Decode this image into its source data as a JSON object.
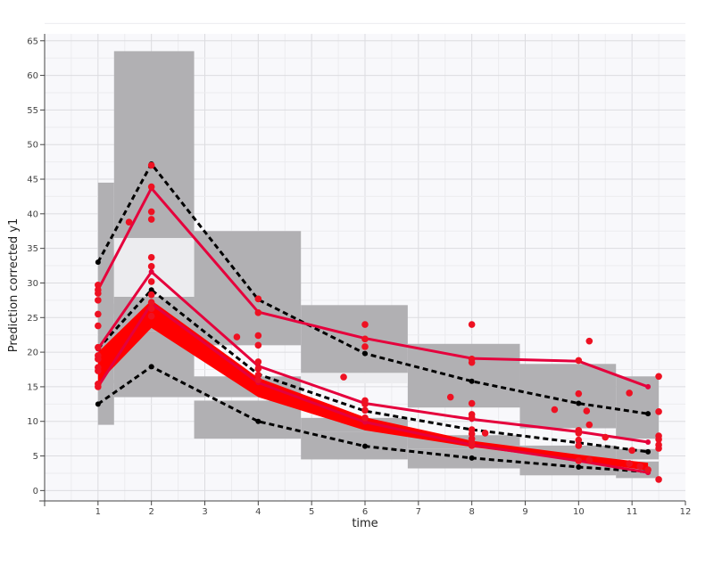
{
  "chart_data": {
    "type": "scatter",
    "xlabel": "time",
    "ylabel": "Prediction corrected y1",
    "xlim": [
      0,
      12
    ],
    "ylim": [
      -1.5,
      66
    ],
    "xticks": [
      1,
      2,
      3,
      4,
      5,
      6,
      7,
      8,
      9,
      10,
      11,
      12
    ],
    "yticks": [
      0,
      5,
      10,
      15,
      20,
      25,
      30,
      35,
      40,
      45,
      50,
      55,
      60,
      65
    ],
    "grid": true,
    "legend": "none",
    "colors": {
      "plot_background": "#f8f8fb",
      "outer_band": "#b1b0b3",
      "median_band": "#ff0000",
      "inner_gap": "#ececef",
      "observed": "#e5003c",
      "simulated": "#000000",
      "points": "#ee1122"
    },
    "bins": [
      {
        "x0": 1.0,
        "x1": 1.3,
        "ylow": [
          9.5,
          16.0,
          25.5
        ],
        "yhigh": [
          16.0,
          25.5,
          44.5
        ],
        "median": [
          15.5,
          27.0
        ]
      },
      {
        "x0": 1.3,
        "x1": 2.8,
        "ylow": [
          13.5,
          23.5,
          36.5
        ],
        "yhigh": [
          23.0,
          28.0,
          63.5
        ],
        "median": [
          23.0,
          28.0
        ]
      },
      {
        "x0": 2.8,
        "x1": 4.8,
        "ylow": [
          7.5,
          13.0,
          21.0
        ],
        "yhigh": [
          13.0,
          21.0,
          37.5
        ],
        "median": [
          13.5,
          16.5
        ]
      },
      {
        "x0": 4.8,
        "x1": 6.8,
        "ylow": [
          4.5,
          8.5,
          17.0
        ],
        "yhigh": [
          8.5,
          15.5,
          26.8
        ],
        "median": [
          8.5,
          10.5
        ]
      },
      {
        "x0": 6.8,
        "x1": 8.9,
        "ylow": [
          3.2,
          6.5,
          12.0
        ],
        "yhigh": [
          6.0,
          12.0,
          21.2
        ],
        "median": [
          6.0,
          8.0
        ]
      },
      {
        "x0": 8.9,
        "x1": 10.7,
        "ylow": [
          2.2,
          4.5,
          9.0
        ],
        "yhigh": [
          4.8,
          9.5,
          18.3
        ],
        "median": [
          4.5,
          6.5
        ]
      },
      {
        "x0": 10.7,
        "x1": 11.5,
        "ylow": [
          1.8,
          4.0,
          7.5
        ],
        "yhigh": [
          4.2,
          8.0,
          16.5
        ],
        "median": [
          4.5,
          6.0
        ]
      }
    ],
    "median_band": {
      "x": [
        1.0,
        2.0,
        4.0,
        6.0,
        8.0,
        10.0,
        11.3
      ],
      "low": [
        15.5,
        23.5,
        13.5,
        8.7,
        6.3,
        4.3,
        2.9
      ],
      "high": [
        20.0,
        27.5,
        16.3,
        10.6,
        7.2,
        5.2,
        4.0
      ]
    },
    "series": [
      {
        "role": "observed-p95",
        "x": [
          1.0,
          2.0,
          4.0,
          6.0,
          8.0,
          10.0,
          11.3
        ],
        "values": [
          29.0,
          43.7,
          25.8,
          22.0,
          19.1,
          18.7,
          15.0
        ]
      },
      {
        "role": "observed-p50",
        "x": [
          1.0,
          2.0,
          4.0,
          6.0,
          8.0,
          10.0,
          11.3
        ],
        "values": [
          20.5,
          31.6,
          18.0,
          12.6,
          10.3,
          8.5,
          7.0
        ]
      },
      {
        "role": "observed-p5",
        "x": [
          1.0,
          2.0,
          4.0,
          6.0,
          8.0,
          10.0,
          11.3
        ],
        "values": [
          15.0,
          27.0,
          15.6,
          9.9,
          6.6,
          4.3,
          2.6
        ]
      },
      {
        "role": "simulated-p95",
        "x": [
          1.0,
          2.0,
          4.0,
          6.0,
          8.0,
          10.0,
          11.3
        ],
        "values": [
          33.0,
          47.2,
          27.6,
          19.8,
          15.8,
          12.6,
          11.1
        ]
      },
      {
        "role": "simulated-p50",
        "x": [
          1.0,
          2.0,
          4.0,
          6.0,
          8.0,
          10.0,
          11.3
        ],
        "values": [
          20.5,
          29.0,
          16.8,
          11.5,
          8.8,
          6.9,
          5.6
        ]
      },
      {
        "role": "simulated-p5",
        "x": [
          1.0,
          2.0,
          4.0,
          6.0,
          8.0,
          10.0,
          11.3
        ],
        "values": [
          12.5,
          17.9,
          10.0,
          6.4,
          4.7,
          3.4,
          2.7
        ]
      }
    ],
    "points": [
      {
        "x": 1,
        "y": 29.7
      },
      {
        "x": 1,
        "y": 29.0
      },
      {
        "x": 1,
        "y": 28.5
      },
      {
        "x": 1,
        "y": 27.5
      },
      {
        "x": 1,
        "y": 25.5
      },
      {
        "x": 1,
        "y": 23.8
      },
      {
        "x": 1,
        "y": 20.7
      },
      {
        "x": 1,
        "y": 19.5
      },
      {
        "x": 1,
        "y": 19.0
      },
      {
        "x": 1,
        "y": 17.8
      },
      {
        "x": 1,
        "y": 17.3
      },
      {
        "x": 1,
        "y": 15.4
      },
      {
        "x": 1,
        "y": 15.0
      },
      {
        "x": 1.58,
        "y": 38.8
      },
      {
        "x": 2,
        "y": 47.0
      },
      {
        "x": 2,
        "y": 43.9
      },
      {
        "x": 2,
        "y": 40.3
      },
      {
        "x": 2,
        "y": 39.2
      },
      {
        "x": 2,
        "y": 33.7
      },
      {
        "x": 2,
        "y": 32.4
      },
      {
        "x": 2,
        "y": 30.2
      },
      {
        "x": 2,
        "y": 28.3
      },
      {
        "x": 2,
        "y": 27.2
      },
      {
        "x": 2,
        "y": 26.3
      },
      {
        "x": 2,
        "y": 25.2
      },
      {
        "x": 3.6,
        "y": 22.2
      },
      {
        "x": 4,
        "y": 27.7
      },
      {
        "x": 4,
        "y": 25.7
      },
      {
        "x": 4,
        "y": 22.4
      },
      {
        "x": 4,
        "y": 21.0
      },
      {
        "x": 4,
        "y": 18.6
      },
      {
        "x": 4,
        "y": 17.6
      },
      {
        "x": 4,
        "y": 16.7
      },
      {
        "x": 4,
        "y": 16.0
      },
      {
        "x": 5.6,
        "y": 16.4
      },
      {
        "x": 6,
        "y": 24.0
      },
      {
        "x": 6,
        "y": 21.9
      },
      {
        "x": 6,
        "y": 20.8
      },
      {
        "x": 6,
        "y": 13.0
      },
      {
        "x": 6,
        "y": 12.5
      },
      {
        "x": 6,
        "y": 11.6
      },
      {
        "x": 6,
        "y": 10.5
      },
      {
        "x": 7.6,
        "y": 13.5
      },
      {
        "x": 8,
        "y": 24.0
      },
      {
        "x": 8,
        "y": 19.0
      },
      {
        "x": 8,
        "y": 18.5
      },
      {
        "x": 8,
        "y": 12.6
      },
      {
        "x": 8,
        "y": 11.0
      },
      {
        "x": 8,
        "y": 10.5
      },
      {
        "x": 8,
        "y": 8.8
      },
      {
        "x": 8,
        "y": 8.2
      },
      {
        "x": 8,
        "y": 7.5
      },
      {
        "x": 8,
        "y": 7.0
      },
      {
        "x": 8,
        "y": 6.5
      },
      {
        "x": 8.25,
        "y": 8.3
      },
      {
        "x": 9.55,
        "y": 11.7
      },
      {
        "x": 10,
        "y": 18.8
      },
      {
        "x": 10,
        "y": 14.0
      },
      {
        "x": 10,
        "y": 8.7
      },
      {
        "x": 10,
        "y": 8.3
      },
      {
        "x": 10,
        "y": 7.3
      },
      {
        "x": 10,
        "y": 6.5
      },
      {
        "x": 10,
        "y": 4.3
      },
      {
        "x": 10.2,
        "y": 21.6
      },
      {
        "x": 10.15,
        "y": 11.5
      },
      {
        "x": 10.2,
        "y": 9.5
      },
      {
        "x": 10.2,
        "y": 4.4
      },
      {
        "x": 10.5,
        "y": 7.7
      },
      {
        "x": 10.95,
        "y": 14.1
      },
      {
        "x": 11.0,
        "y": 5.8
      },
      {
        "x": 10.95,
        "y": 3.9
      },
      {
        "x": 11.15,
        "y": 3.5
      },
      {
        "x": 11.3,
        "y": 3.0
      },
      {
        "x": 11.5,
        "y": 16.5
      },
      {
        "x": 11.5,
        "y": 11.4
      },
      {
        "x": 11.5,
        "y": 7.9
      },
      {
        "x": 11.5,
        "y": 7.4
      },
      {
        "x": 11.5,
        "y": 6.6
      },
      {
        "x": 11.5,
        "y": 6.1
      },
      {
        "x": 11.5,
        "y": 1.6
      }
    ]
  }
}
